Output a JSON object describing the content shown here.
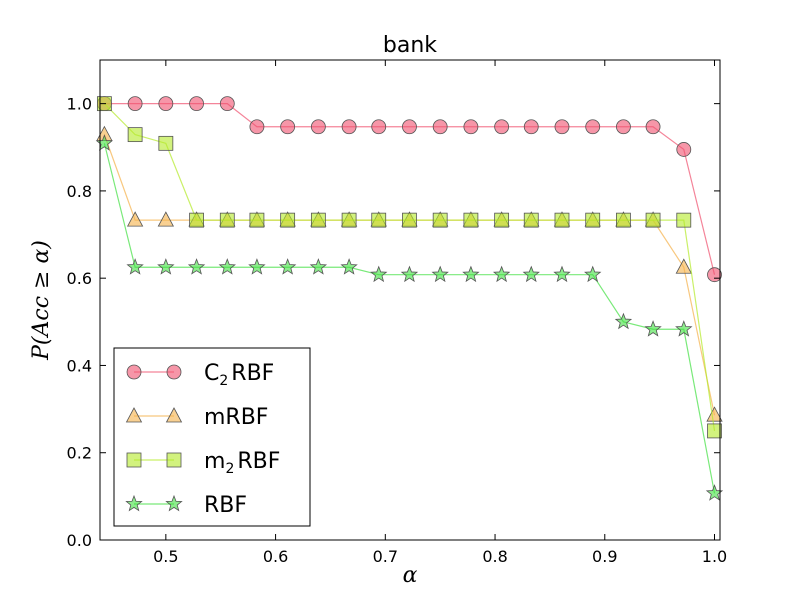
{
  "chart_data": {
    "type": "line",
    "title": "bank",
    "xlabel": "α",
    "ylabel": "P(Acc ≥ α)",
    "xlim": [
      0.44,
      1.005
    ],
    "ylim": [
      0.0,
      1.1
    ],
    "xticks": [
      0.5,
      0.6,
      0.7,
      0.8,
      0.9,
      1.0
    ],
    "xtick_labels": [
      "0.5",
      "0.6",
      "0.7",
      "0.8",
      "0.9",
      "1.0"
    ],
    "yticks": [
      0.0,
      0.2,
      0.4,
      0.6,
      0.8,
      1.0
    ],
    "ytick_labels": [
      "0.0",
      "0.2",
      "0.4",
      "0.6",
      "0.8",
      "1.0"
    ],
    "grid": false,
    "legend_position": "lower-left",
    "x": [
      0.444,
      0.472,
      0.5,
      0.528,
      0.556,
      0.583,
      0.611,
      0.639,
      0.667,
      0.694,
      0.722,
      0.75,
      0.778,
      0.806,
      0.833,
      0.861,
      0.889,
      0.917,
      0.944,
      0.972,
      1.0
    ],
    "series": [
      {
        "name": "C2RBF",
        "label_main": "C",
        "label_sub": "2",
        "label_rest": "RBF",
        "marker": "circle",
        "color": "#f0506e",
        "values": [
          1.0,
          1.0,
          1.0,
          1.0,
          1.0,
          0.947,
          0.947,
          0.947,
          0.947,
          0.947,
          0.947,
          0.947,
          0.947,
          0.947,
          0.947,
          0.947,
          0.947,
          0.947,
          0.947,
          0.895,
          0.608
        ]
      },
      {
        "name": "mRBF",
        "label_main": "mRBF",
        "label_sub": "",
        "label_rest": "",
        "marker": "triangle",
        "color": "#f5b048",
        "values": [
          0.929,
          0.733,
          0.733,
          0.733,
          0.733,
          0.733,
          0.733,
          0.733,
          0.733,
          0.733,
          0.733,
          0.733,
          0.733,
          0.733,
          0.733,
          0.733,
          0.733,
          0.733,
          0.733,
          0.625,
          0.286
        ]
      },
      {
        "name": "m2RBF",
        "label_main": "m",
        "label_sub": "2",
        "label_rest": "RBF",
        "marker": "square",
        "color": "#b4ea28",
        "values": [
          1.0,
          0.929,
          0.909,
          0.733,
          0.733,
          0.733,
          0.733,
          0.733,
          0.733,
          0.733,
          0.733,
          0.733,
          0.733,
          0.733,
          0.733,
          0.733,
          0.733,
          0.733,
          0.733,
          0.733,
          0.25
        ]
      },
      {
        "name": "RBF",
        "label_main": "RBF",
        "label_sub": "",
        "label_rest": "",
        "marker": "star",
        "color": "#40e040",
        "values": [
          0.909,
          0.625,
          0.625,
          0.625,
          0.625,
          0.625,
          0.625,
          0.625,
          0.625,
          0.608,
          0.608,
          0.608,
          0.608,
          0.608,
          0.608,
          0.608,
          0.608,
          0.5,
          0.483,
          0.483,
          0.107
        ]
      }
    ]
  }
}
